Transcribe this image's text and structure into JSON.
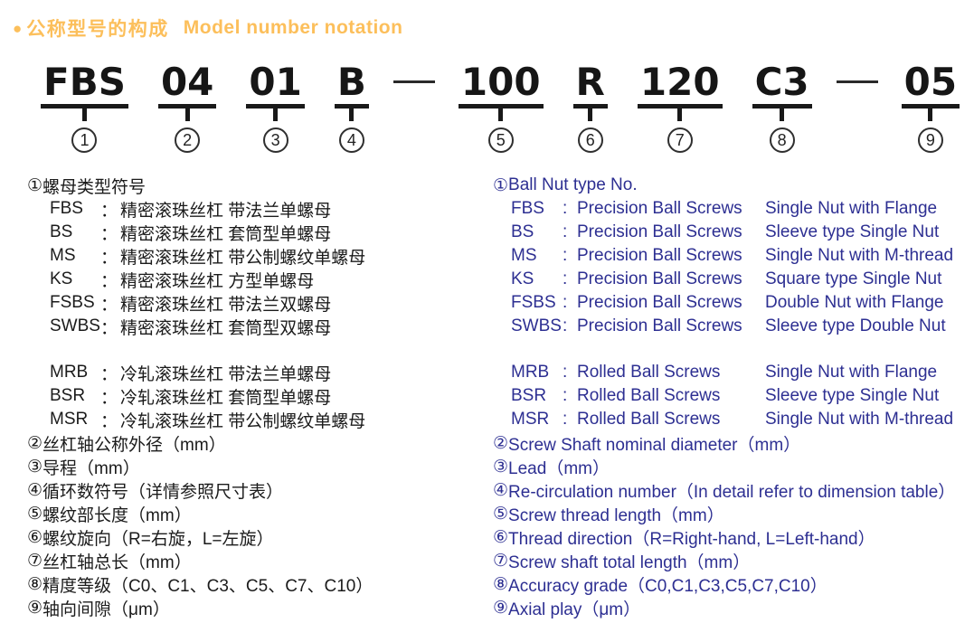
{
  "colors": {
    "accent": "#fcbf5b",
    "text": "#1b1b1b",
    "blue": "#2d2f92"
  },
  "title": {
    "bullet": "●",
    "zh": "公称型号的构成",
    "en": "Model number notation"
  },
  "model_diagram": {
    "segments": [
      {
        "text": "FBS",
        "num": "1"
      },
      {
        "text": "04",
        "num": "2"
      },
      {
        "text": "01",
        "num": "3"
      },
      {
        "text": "B",
        "num": "4"
      },
      {
        "dash": true
      },
      {
        "text": "100",
        "num": "5"
      },
      {
        "text": "R",
        "num": "6"
      },
      {
        "text": "120",
        "num": "7"
      },
      {
        "text": "C3",
        "num": "8"
      },
      {
        "dash": true
      },
      {
        "text": "05",
        "num": "9"
      }
    ]
  },
  "left_column": {
    "lines": [
      {
        "marker": "①",
        "text": "螺母类型符号"
      },
      {
        "code": "FBS",
        "colon": "：",
        "desc": "精密滚珠丝杠 带法兰单螺母"
      },
      {
        "code": "BS",
        "colon": "：",
        "desc": "精密滚珠丝杠 套筒型单螺母"
      },
      {
        "code": "MS",
        "colon": "：",
        "desc": "精密滚珠丝杠 带公制螺纹单螺母"
      },
      {
        "code": "KS",
        "colon": "：",
        "desc": "精密滚珠丝杠 方型单螺母"
      },
      {
        "code": "FSBS",
        "colon": "：",
        "desc": "精密滚珠丝杠 带法兰双螺母"
      },
      {
        "code": "SWBS",
        "colon": "：",
        "desc": "精密滚珠丝杠 套筒型双螺母"
      },
      {
        "code": "MRB",
        "colon": "：",
        "desc": "冷轧滚珠丝杠 带法兰单螺母"
      },
      {
        "code": "BSR",
        "colon": "：",
        "desc": "冷轧滚珠丝杠 套筒型单螺母"
      },
      {
        "code": "MSR",
        "colon": "：",
        "desc": "冷轧滚珠丝杠 带公制螺纹单螺母"
      },
      {
        "marker": "②",
        "text": "丝杠轴公称外径（mm）"
      },
      {
        "marker": "③",
        "text": "导程（mm）"
      },
      {
        "marker": "④",
        "text": "循环数符号（详情参照尺寸表）"
      },
      {
        "marker": "⑤",
        "text": "螺纹部长度（mm）"
      },
      {
        "marker": "⑥",
        "text": "螺纹旋向（R=右旋，L=左旋）"
      },
      {
        "marker": "⑦",
        "text": "丝杠轴总长（mm）"
      },
      {
        "marker": "⑧",
        "text": "精度等级（C0、C1、C3、C5、C7、C10）"
      },
      {
        "marker": "⑨",
        "text": "轴向间隙（μm）"
      }
    ]
  },
  "right_column": {
    "lines": [
      {
        "marker": "①",
        "text": "Ball Nut type No."
      },
      {
        "code": "FBS",
        "colon": ":",
        "family": "Precision Ball Screws",
        "desc": "Single Nut with Flange"
      },
      {
        "code": "BS",
        "colon": ":",
        "family": "Precision Ball Screws",
        "desc": "Sleeve type Single Nut"
      },
      {
        "code": "MS",
        "colon": ":",
        "family": "Precision Ball Screws",
        "desc": "Single Nut with M-thread"
      },
      {
        "code": "KS",
        "colon": ":",
        "family": "Precision Ball Screws",
        "desc": "Square type Single Nut"
      },
      {
        "code": "FSBS",
        "colon": ":",
        "family": "Precision Ball Screws",
        "desc": "Double Nut with Flange"
      },
      {
        "code": "SWBS",
        "colon": ":",
        "family": "Precision Ball Screws",
        "desc": "Sleeve type Double Nut"
      },
      {
        "code": "MRB",
        "colon": ":",
        "family": "Rolled Ball Screws",
        "desc": "Single Nut with Flange"
      },
      {
        "code": "BSR",
        "colon": ":",
        "family": "Rolled Ball Screws",
        "desc": "Sleeve type Single Nut"
      },
      {
        "code": "MSR",
        "colon": ":",
        "family": "Rolled Ball Screws",
        "desc": "Single Nut with M-thread"
      },
      {
        "marker": "②",
        "text": "Screw Shaft nominal diameter（mm）"
      },
      {
        "marker": "③",
        "text": "Lead（mm）"
      },
      {
        "marker": "④",
        "text": "Re-circulation number（In detail refer to dimension table）"
      },
      {
        "marker": "⑤",
        "text": "Screw thread length（mm）"
      },
      {
        "marker": "⑥",
        "text": "Thread direction（R=Right-hand, L=Left-hand）"
      },
      {
        "marker": "⑦",
        "text": "Screw shaft total length（mm）"
      },
      {
        "marker": "⑧",
        "text": "Accuracy grade（C0,C1,C3,C5,C7,C10）"
      },
      {
        "marker": "⑨",
        "text": "Axial play（μm）"
      }
    ]
  }
}
